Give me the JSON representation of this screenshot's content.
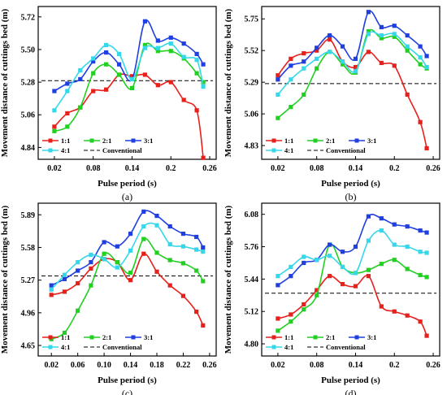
{
  "chart_data": [
    {
      "type": "line",
      "panel_label": "(a)",
      "xlabel": "Pulse period (s)",
      "ylabel": "Movement distance of cuttings bed (m)",
      "x_ticks": [
        "0.02",
        "0.08",
        "0.14",
        "0.2",
        "0.26"
      ],
      "y_ticks": [
        "4.84",
        "5.06",
        "5.28",
        "5.50",
        "5.72"
      ],
      "xlim": [
        -0.005,
        0.27
      ],
      "ylim": [
        4.76,
        5.79
      ],
      "x": [
        0.02,
        0.04,
        0.06,
        0.08,
        0.1,
        0.12,
        0.14,
        0.16,
        0.18,
        0.2,
        0.22,
        0.24,
        0.25
      ],
      "series": [
        {
          "name": "1:1",
          "color": "#e8201c",
          "marker": "square",
          "values": [
            4.98,
            5.07,
            5.11,
            5.22,
            5.23,
            5.33,
            5.32,
            5.33,
            5.26,
            5.28,
            5.16,
            5.09,
            4.77
          ]
        },
        {
          "name": "2:1",
          "color": "#22d022",
          "marker": "square",
          "values": [
            4.95,
            4.98,
            5.11,
            5.34,
            5.4,
            5.33,
            5.24,
            5.53,
            5.49,
            5.49,
            5.44,
            5.34,
            5.28
          ]
        },
        {
          "name": "3:1",
          "color": "#1f3fe0",
          "marker": "square",
          "values": [
            5.22,
            5.27,
            5.3,
            5.42,
            5.48,
            5.4,
            5.3,
            5.69,
            5.56,
            5.58,
            5.54,
            5.47,
            5.4
          ]
        },
        {
          "name": "4:1",
          "color": "#35d8ea",
          "marker": "square",
          "values": [
            5.09,
            5.22,
            5.36,
            5.44,
            5.53,
            5.47,
            5.3,
            5.51,
            5.51,
            5.54,
            5.45,
            5.43,
            5.25
          ]
        }
      ],
      "reference": {
        "name": "Conventional",
        "value": 5.29
      }
    },
    {
      "type": "line",
      "panel_label": "(b)",
      "xlabel": "Pulse period (s)",
      "ylabel": "Movement distance of cuttings bed (m)",
      "x_ticks": [
        "0.02",
        "0.08",
        "0.14",
        "0.2",
        "0.26"
      ],
      "y_ticks": [
        "4.83",
        "5.06",
        "5.29",
        "5.52",
        "5.75"
      ],
      "xlim": [
        -0.005,
        0.27
      ],
      "ylim": [
        4.73,
        5.84
      ],
      "x": [
        0.02,
        0.04,
        0.06,
        0.08,
        0.1,
        0.12,
        0.14,
        0.16,
        0.18,
        0.2,
        0.22,
        0.24,
        0.25
      ],
      "series": [
        {
          "name": "1:1",
          "color": "#e8201c",
          "marker": "square",
          "values": [
            5.34,
            5.46,
            5.5,
            5.52,
            5.6,
            5.44,
            5.4,
            5.51,
            5.43,
            5.41,
            5.2,
            5.0,
            4.81
          ]
        },
        {
          "name": "2:1",
          "color": "#22d022",
          "marker": "square",
          "values": [
            5.03,
            5.11,
            5.2,
            5.39,
            5.51,
            5.42,
            5.36,
            5.66,
            5.61,
            5.62,
            5.52,
            5.42,
            5.39
          ]
        },
        {
          "name": "3:1",
          "color": "#1f3fe0",
          "marker": "square",
          "values": [
            5.31,
            5.41,
            5.44,
            5.54,
            5.63,
            5.55,
            5.46,
            5.8,
            5.69,
            5.7,
            5.63,
            5.55,
            5.48
          ]
        },
        {
          "name": "4:1",
          "color": "#35d8ea",
          "marker": "square",
          "values": [
            5.2,
            5.31,
            5.39,
            5.46,
            5.51,
            5.44,
            5.37,
            5.64,
            5.63,
            5.64,
            5.55,
            5.47,
            5.4
          ]
        }
      ],
      "reference": {
        "name": "Conventional",
        "value": 5.28
      }
    },
    {
      "type": "line",
      "panel_label": "(c)",
      "xlabel": "Pulse period (s)",
      "ylabel": "Movement distance of cuttings bed (m)",
      "x_ticks": [
        "0.02",
        "0.06",
        "0.10",
        "0.14",
        "0.18",
        "0.22",
        "0.26"
      ],
      "y_ticks": [
        "4.65",
        "4.96",
        "5.27",
        "5.58",
        "5.89"
      ],
      "xlim": [
        0.0,
        0.27
      ],
      "ylim": [
        4.55,
        6.0
      ],
      "x": [
        0.02,
        0.04,
        0.06,
        0.08,
        0.1,
        0.12,
        0.14,
        0.16,
        0.18,
        0.2,
        0.22,
        0.24,
        0.25
      ],
      "series": [
        {
          "name": "1:1",
          "color": "#e8201c",
          "marker": "square",
          "values": [
            5.13,
            5.16,
            5.24,
            5.38,
            5.47,
            5.44,
            5.27,
            5.52,
            5.35,
            5.22,
            5.12,
            4.97,
            4.84
          ]
        },
        {
          "name": "2:1",
          "color": "#22d022",
          "marker": "square",
          "values": [
            4.71,
            4.77,
            4.98,
            5.22,
            5.52,
            5.44,
            5.34,
            5.66,
            5.53,
            5.46,
            5.43,
            5.36,
            5.26
          ]
        },
        {
          "name": "3:1",
          "color": "#1f3fe0",
          "marker": "square",
          "values": [
            5.22,
            5.28,
            5.36,
            5.44,
            5.63,
            5.59,
            5.71,
            5.92,
            5.88,
            5.78,
            5.71,
            5.68,
            5.58
          ]
        },
        {
          "name": "4:1",
          "color": "#35d8ea",
          "marker": "square",
          "values": [
            5.18,
            5.32,
            5.44,
            5.51,
            5.47,
            5.39,
            5.55,
            5.78,
            5.79,
            5.61,
            5.59,
            5.56,
            5.54
          ]
        }
      ],
      "reference": {
        "name": "Conventional",
        "value": 5.31
      }
    },
    {
      "type": "line",
      "panel_label": "(d)",
      "xlabel": "Pulse period (s)",
      "ylabel": "Movement distance of cuttings bed (m)",
      "x_ticks": [
        "0.02",
        "0.08",
        "0.14",
        "0.2",
        "0.26"
      ],
      "y_ticks": [
        "4.80",
        "5.12",
        "5.44",
        "5.76",
        "6.08"
      ],
      "xlim": [
        -0.005,
        0.27
      ],
      "ylim": [
        4.68,
        6.19
      ],
      "x": [
        0.02,
        0.04,
        0.06,
        0.08,
        0.1,
        0.12,
        0.14,
        0.16,
        0.18,
        0.2,
        0.22,
        0.24,
        0.25
      ],
      "series": [
        {
          "name": "1:1",
          "color": "#e8201c",
          "marker": "square",
          "values": [
            5.05,
            5.09,
            5.19,
            5.33,
            5.47,
            5.39,
            5.37,
            5.47,
            5.17,
            5.12,
            5.08,
            5.02,
            4.88
          ]
        },
        {
          "name": "2:1",
          "color": "#22d022",
          "marker": "square",
          "values": [
            4.93,
            5.02,
            5.14,
            5.28,
            5.78,
            5.56,
            5.5,
            5.53,
            5.59,
            5.63,
            5.54,
            5.48,
            5.46
          ]
        },
        {
          "name": "3:1",
          "color": "#1f3fe0",
          "marker": "square",
          "values": [
            5.38,
            5.47,
            5.6,
            5.63,
            5.78,
            5.71,
            5.76,
            6.06,
            6.04,
            5.98,
            5.96,
            5.92,
            5.9
          ]
        },
        {
          "name": "4:1",
          "color": "#35d8ea",
          "marker": "square",
          "values": [
            5.47,
            5.56,
            5.66,
            5.63,
            5.67,
            5.56,
            5.5,
            5.82,
            5.92,
            5.78,
            5.76,
            5.71,
            5.7
          ]
        }
      ],
      "reference": {
        "name": "Conventional",
        "value": 5.3
      }
    }
  ]
}
